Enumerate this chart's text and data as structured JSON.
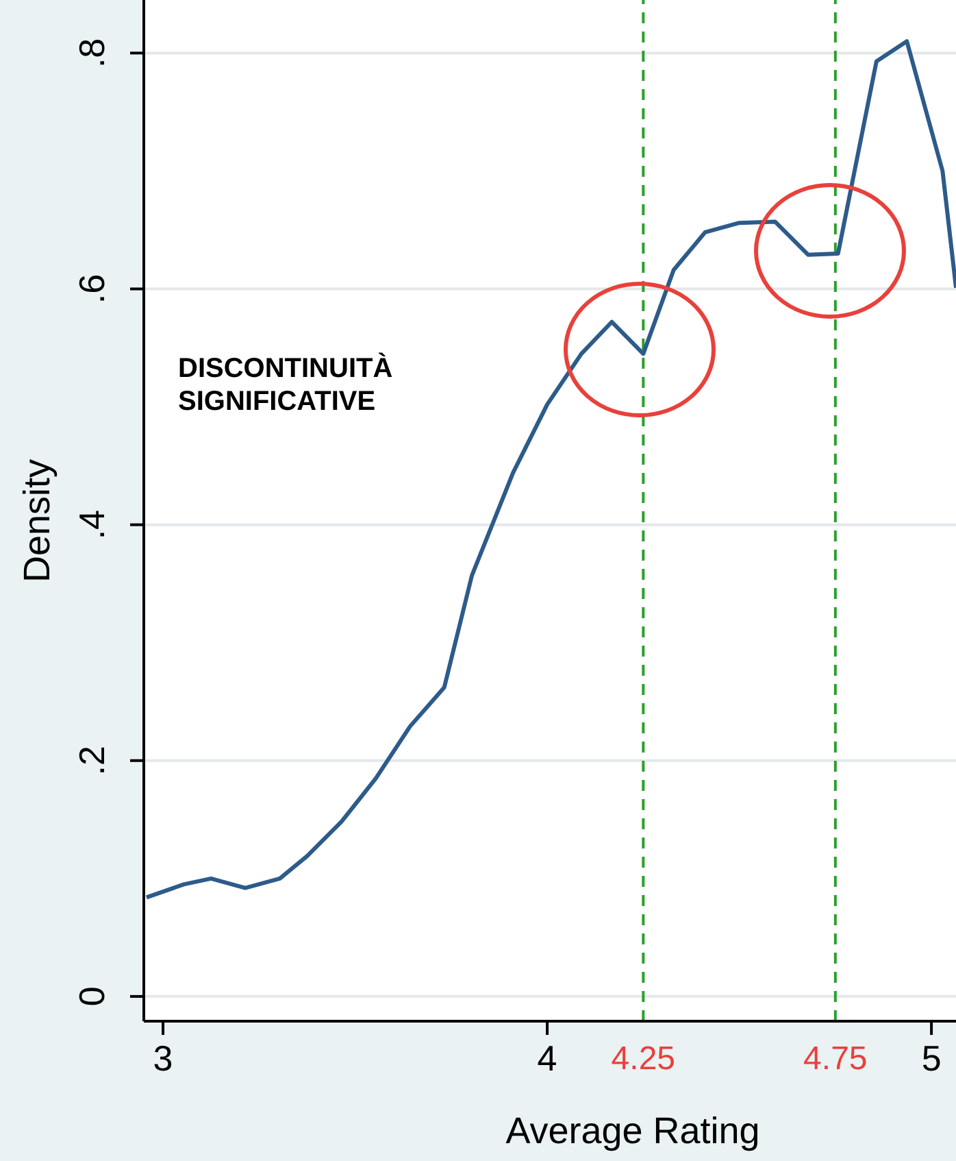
{
  "chart_data": {
    "type": "line",
    "xlabel": "Average Rating",
    "ylabel": "Density",
    "x": [
      2.957,
      3.054,
      3.125,
      3.214,
      3.304,
      3.375,
      3.464,
      3.554,
      3.643,
      3.732,
      3.804,
      3.911,
      4.0,
      4.089,
      4.168,
      4.25,
      4.329,
      4.411,
      4.5,
      4.593,
      4.679,
      4.757,
      4.857,
      4.936,
      5.029,
      5.064
    ],
    "series": [
      {
        "color": "#2d5b8a",
        "values": [
          0.084,
          0.095,
          0.1,
          0.092,
          0.1,
          0.119,
          0.148,
          0.185,
          0.229,
          0.262,
          0.357,
          0.444,
          0.502,
          0.545,
          0.572,
          0.545,
          0.616,
          0.648,
          0.656,
          0.657,
          0.629,
          0.63,
          0.793,
          0.81,
          0.7,
          0.601
        ]
      }
    ],
    "xlim": [
      2.95,
      5.064
    ],
    "ylim": [
      -0.021,
      0.845
    ],
    "xticks": [
      3,
      4,
      5
    ],
    "yticks": [
      {
        "value": 0,
        "label": "0"
      },
      {
        "value": 0.2,
        "label": ".2"
      },
      {
        "value": 0.4,
        "label": ".4"
      },
      {
        "value": 0.6,
        "label": ".6"
      },
      {
        "value": 0.8,
        "label": ".8"
      }
    ],
    "grid": "y",
    "marker": "none",
    "line_style": "solid",
    "ref_lines": [
      {
        "axis": "x",
        "value": 4.25,
        "label": "4.25",
        "color": "#2ca02c",
        "line_style": "dashed"
      },
      {
        "axis": "x",
        "value": 4.75,
        "label": "4.75",
        "color": "#2ca02c",
        "line_style": "dashed"
      }
    ],
    "annotations": [
      "DISCONTINUITÀ SIGNIFICATIVE"
    ]
  }
}
